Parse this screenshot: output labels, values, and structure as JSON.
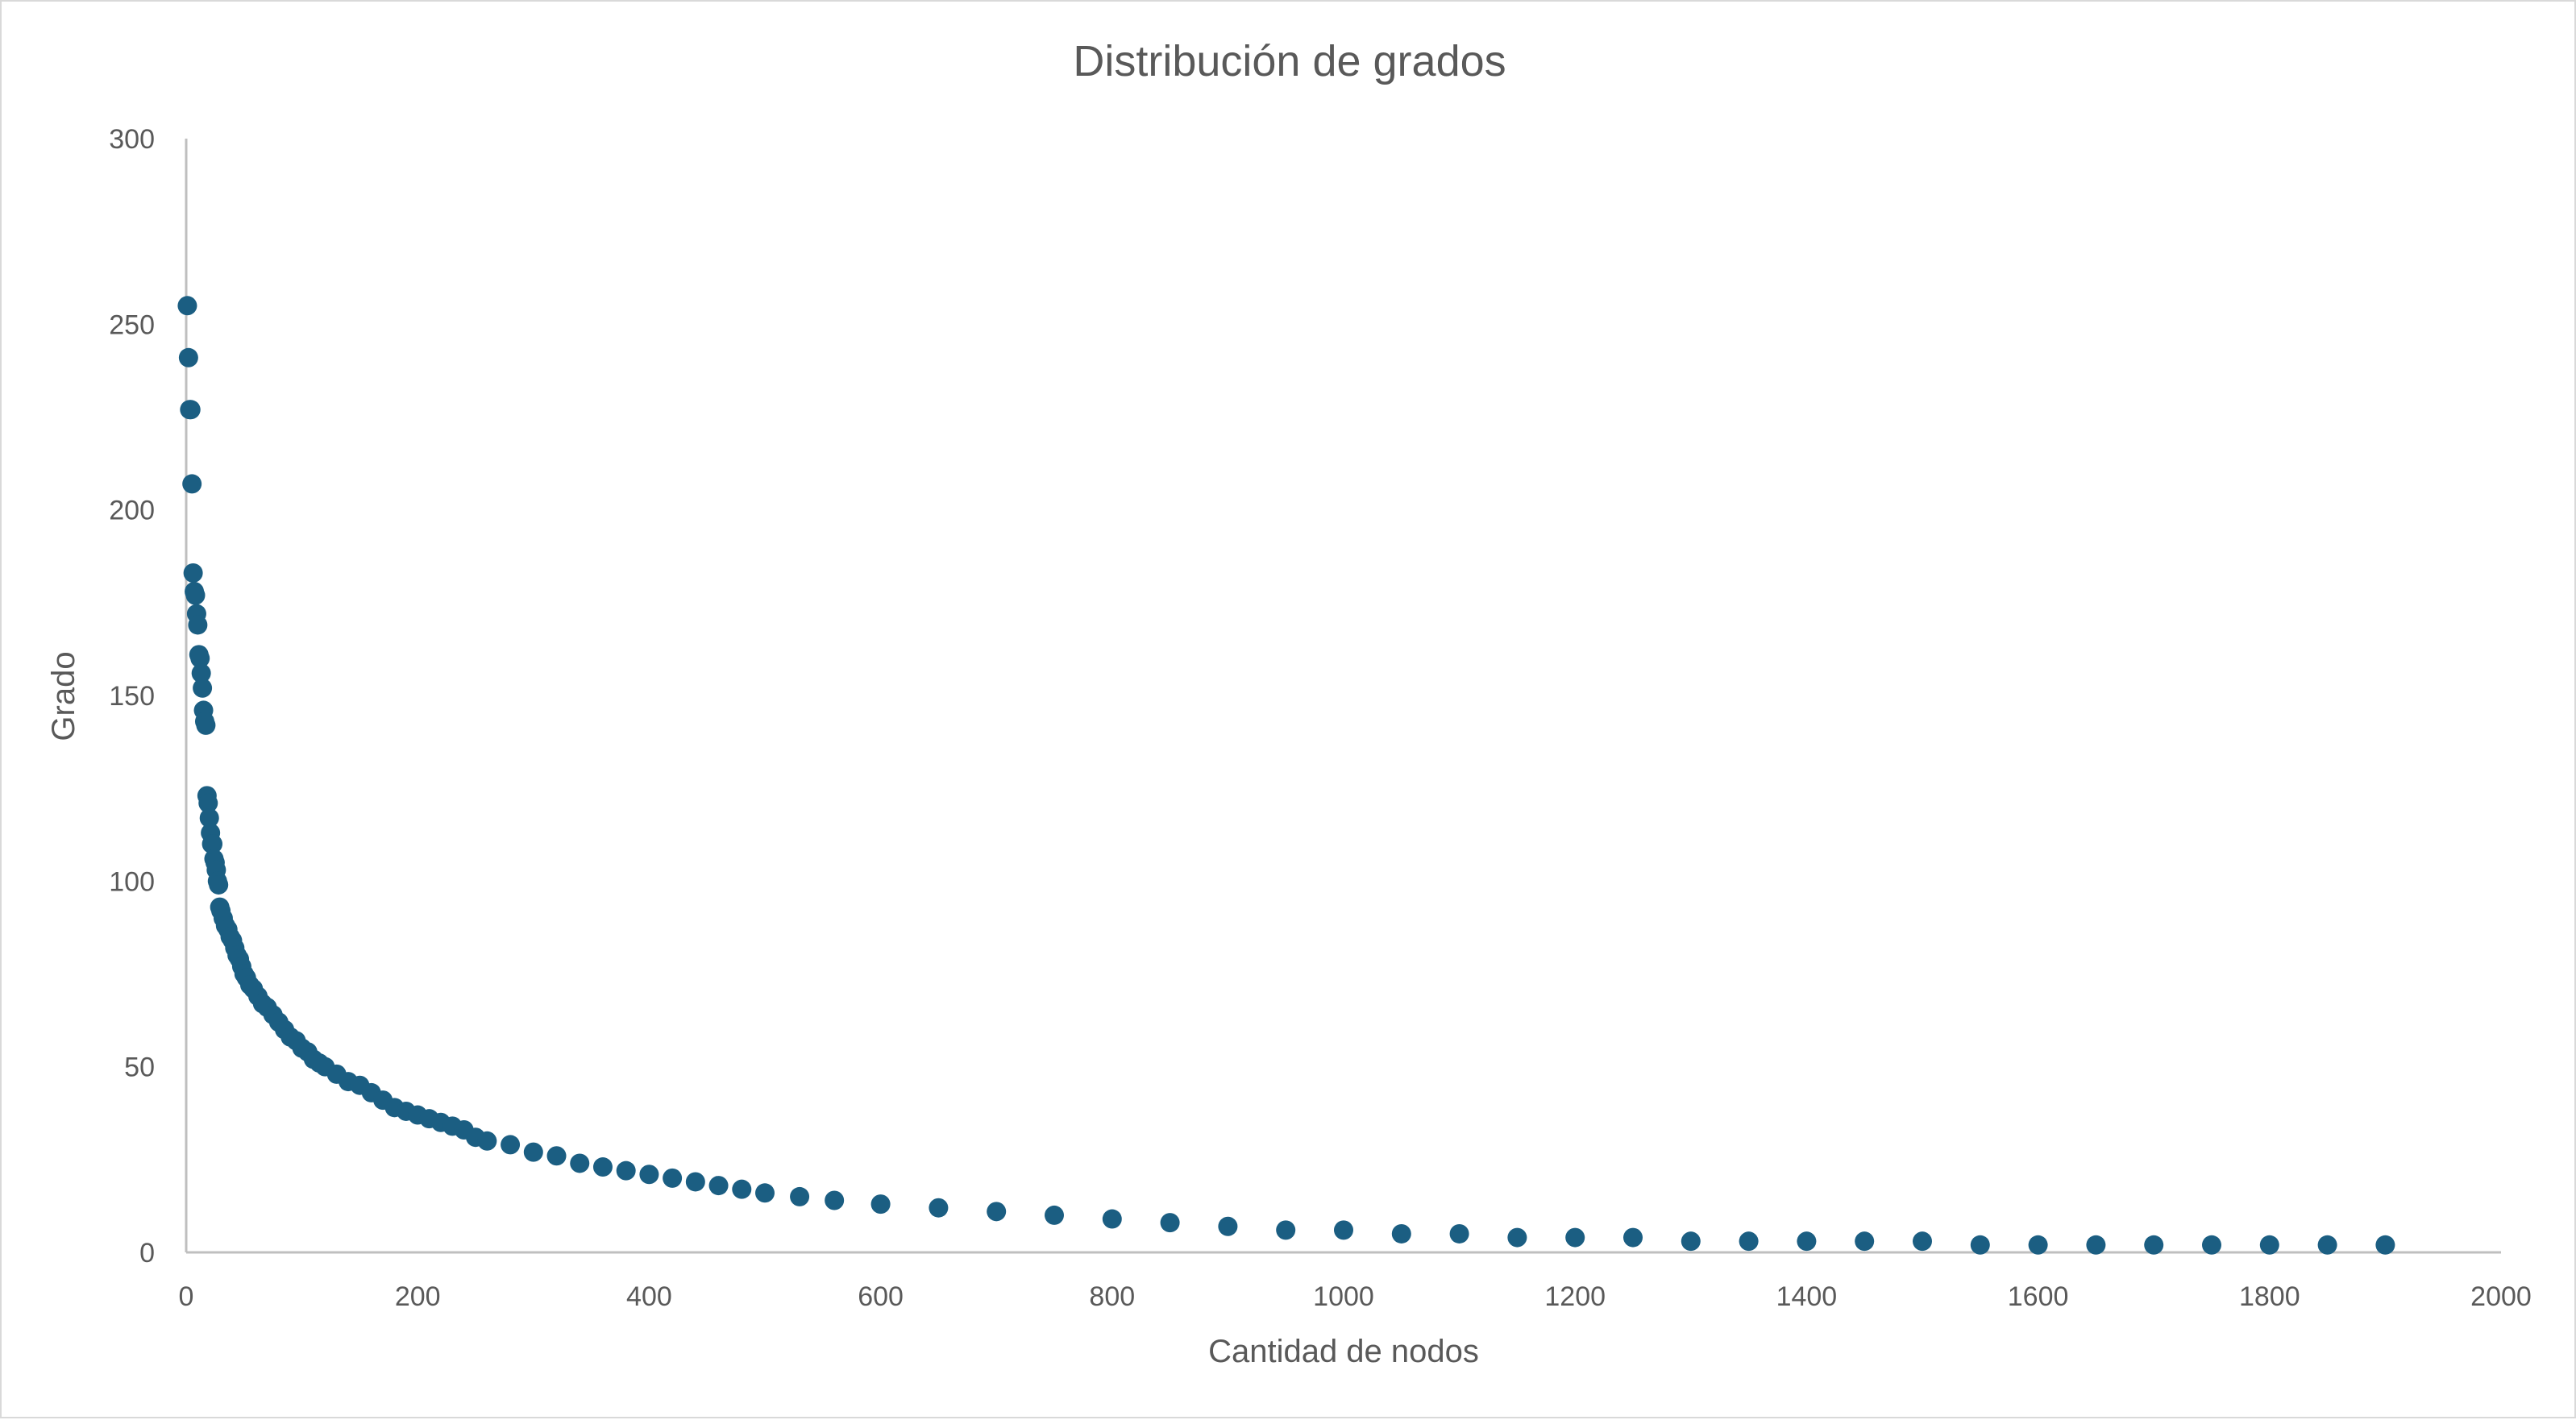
{
  "chart_data": {
    "type": "scatter",
    "title": "Distribución de grados",
    "xlabel": "Cantidad de nodos",
    "ylabel": "Grado",
    "xlim": [
      0,
      2000
    ],
    "ylim": [
      0,
      300
    ],
    "xticks": [
      0,
      200,
      400,
      600,
      800,
      1000,
      1200,
      1400,
      1600,
      1800,
      2000
    ],
    "yticks": [
      0,
      50,
      100,
      150,
      200,
      250,
      300
    ],
    "grid": false,
    "legend": "none",
    "marker_color": "#1b5e82",
    "axis_color": "#bfbfbf",
    "series": [
      {
        "points": [
          [
            1,
            255
          ],
          [
            2,
            241
          ],
          [
            3,
            227
          ],
          [
            4,
            227
          ],
          [
            5,
            207
          ],
          [
            6,
            183
          ],
          [
            7,
            178
          ],
          [
            8,
            177
          ],
          [
            9,
            172
          ],
          [
            10,
            169
          ],
          [
            11,
            161
          ],
          [
            12,
            160
          ],
          [
            13,
            156
          ],
          [
            14,
            152
          ],
          [
            15,
            146
          ],
          [
            16,
            143
          ],
          [
            17,
            142
          ],
          [
            18,
            123
          ],
          [
            19,
            121
          ],
          [
            20,
            117
          ],
          [
            21,
            113
          ],
          [
            22,
            110
          ],
          [
            23,
            110
          ],
          [
            24,
            106
          ],
          [
            25,
            105
          ],
          [
            26,
            103
          ],
          [
            27,
            100
          ],
          [
            28,
            99
          ],
          [
            29,
            93
          ],
          [
            30,
            92
          ],
          [
            32,
            90
          ],
          [
            34,
            88
          ],
          [
            36,
            87
          ],
          [
            38,
            85
          ],
          [
            40,
            84
          ],
          [
            42,
            82
          ],
          [
            44,
            80
          ],
          [
            46,
            79
          ],
          [
            48,
            77
          ],
          [
            50,
            75
          ],
          [
            52,
            74
          ],
          [
            55,
            72
          ],
          [
            58,
            71
          ],
          [
            62,
            69
          ],
          [
            66,
            67
          ],
          [
            70,
            66
          ],
          [
            75,
            64
          ],
          [
            80,
            62
          ],
          [
            85,
            60
          ],
          [
            90,
            58
          ],
          [
            95,
            57
          ],
          [
            100,
            55
          ],
          [
            105,
            54
          ],
          [
            110,
            52
          ],
          [
            115,
            51
          ],
          [
            120,
            50
          ],
          [
            130,
            48
          ],
          [
            140,
            46
          ],
          [
            150,
            45
          ],
          [
            160,
            43
          ],
          [
            170,
            41
          ],
          [
            180,
            39
          ],
          [
            190,
            38
          ],
          [
            200,
            37
          ],
          [
            210,
            36
          ],
          [
            220,
            35
          ],
          [
            230,
            34
          ],
          [
            240,
            33
          ],
          [
            250,
            31
          ],
          [
            260,
            30
          ],
          [
            280,
            29
          ],
          [
            300,
            27
          ],
          [
            320,
            26
          ],
          [
            340,
            24
          ],
          [
            360,
            23
          ],
          [
            380,
            22
          ],
          [
            400,
            21
          ],
          [
            420,
            20
          ],
          [
            440,
            19
          ],
          [
            460,
            18
          ],
          [
            480,
            17
          ],
          [
            500,
            16
          ],
          [
            530,
            15
          ],
          [
            560,
            14
          ],
          [
            600,
            13
          ],
          [
            650,
            12
          ],
          [
            700,
            11
          ],
          [
            750,
            10
          ],
          [
            800,
            9
          ],
          [
            850,
            8
          ],
          [
            900,
            7
          ],
          [
            950,
            6
          ],
          [
            1000,
            6
          ],
          [
            1050,
            5
          ],
          [
            1100,
            5
          ],
          [
            1150,
            4
          ],
          [
            1200,
            4
          ],
          [
            1250,
            4
          ],
          [
            1300,
            3
          ],
          [
            1350,
            3
          ],
          [
            1400,
            3
          ],
          [
            1450,
            3
          ],
          [
            1500,
            3
          ],
          [
            1550,
            2
          ],
          [
            1600,
            2
          ],
          [
            1650,
            2
          ],
          [
            1700,
            2
          ],
          [
            1750,
            2
          ],
          [
            1800,
            2
          ],
          [
            1850,
            2
          ],
          [
            1900,
            2
          ]
        ]
      }
    ]
  }
}
